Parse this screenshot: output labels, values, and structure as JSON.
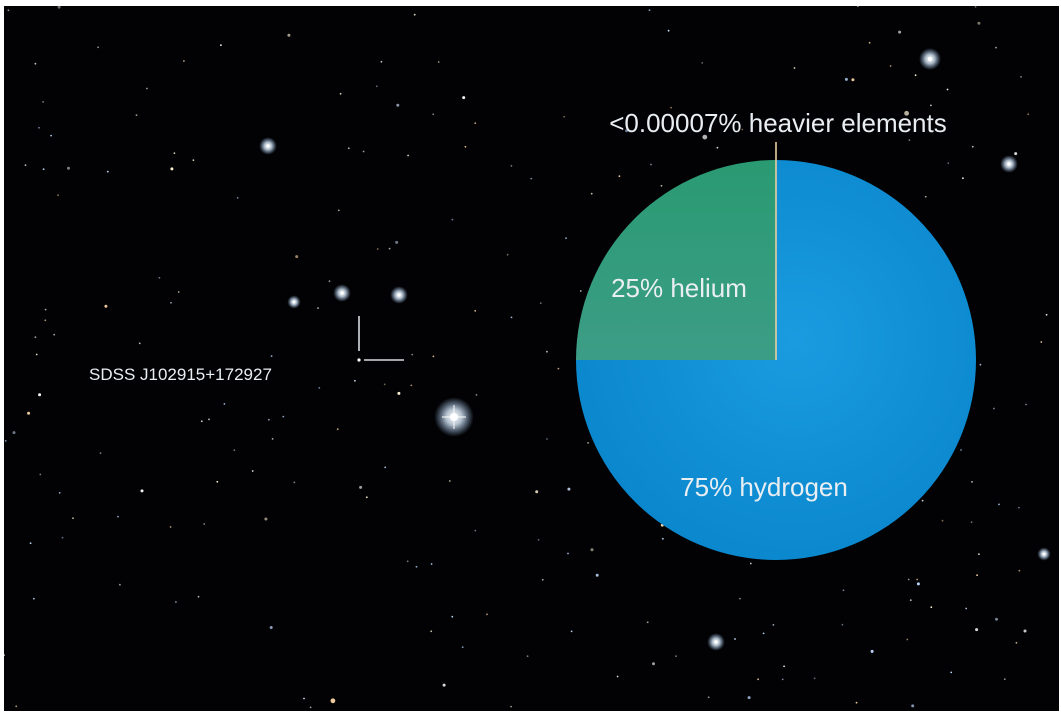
{
  "chart_data": {
    "type": "pie",
    "title": "",
    "slices": [
      {
        "label": "75% hydrogen",
        "value": 75,
        "color": "#0a8fd3"
      },
      {
        "label": "25% helium",
        "value": 25,
        "color": "#2d9a78"
      },
      {
        "label": "<0.00007% heavier elements",
        "value": 7e-05,
        "color": "#e8cfa2"
      }
    ],
    "start": "top",
    "direction": "clockwise"
  },
  "target": {
    "label": "SDSS J102915+172927",
    "marker": "crosshair"
  },
  "background": {
    "type": "starfield",
    "color": "#020204"
  }
}
